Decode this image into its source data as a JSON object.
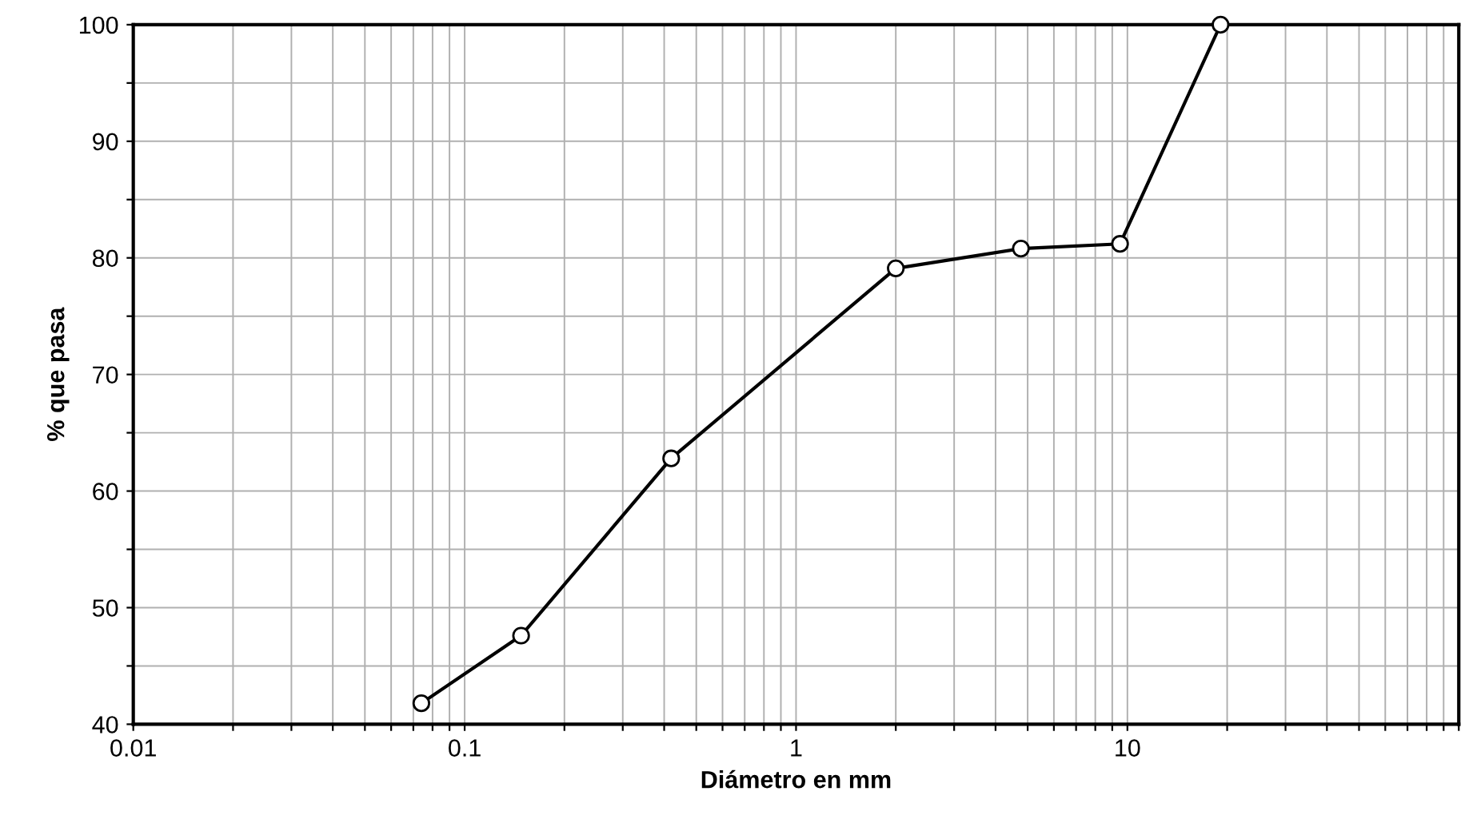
{
  "chart_data": {
    "type": "line",
    "xlabel": "Diámetro en mm",
    "ylabel": "% que pasa",
    "log": "x",
    "grid": true,
    "marker": "circle",
    "line_style": "solid",
    "x": [
      0.074,
      0.148,
      0.42,
      2.0,
      4.77,
      9.5,
      19.1
    ],
    "series": [
      {
        "color": "#000000",
        "values": [
          41.8,
          47.6,
          62.8,
          79.1,
          80.8,
          81.2,
          100
        ]
      }
    ],
    "xlim": [
      0.01,
      100
    ],
    "ylim": [
      40,
      100
    ],
    "xticks": [
      0.01,
      {
        "value": 0.02,
        "label": null
      },
      {
        "value": 0.03,
        "label": null
      },
      {
        "value": 0.04,
        "label": null
      },
      {
        "value": 0.05,
        "label": null
      },
      {
        "value": 0.06,
        "label": null
      },
      {
        "value": 0.07,
        "label": null
      },
      {
        "value": 0.08,
        "label": null
      },
      {
        "value": 0.09,
        "label": null
      },
      0.1,
      {
        "value": 0.2,
        "label": null
      },
      {
        "value": 0.3,
        "label": null
      },
      {
        "value": 0.4,
        "label": null
      },
      {
        "value": 0.5,
        "label": null
      },
      {
        "value": 0.6,
        "label": null
      },
      {
        "value": 0.7,
        "label": null
      },
      {
        "value": 0.8,
        "label": null
      },
      {
        "value": 0.9,
        "label": null
      },
      1,
      {
        "value": 2,
        "label": null
      },
      {
        "value": 3,
        "label": null
      },
      {
        "value": 4,
        "label": null
      },
      {
        "value": 5,
        "label": null
      },
      {
        "value": 6,
        "label": null
      },
      {
        "value": 7,
        "label": null
      },
      {
        "value": 8,
        "label": null
      },
      {
        "value": 9,
        "label": null
      },
      10,
      {
        "value": 20,
        "label": null
      },
      {
        "value": 30,
        "label": null
      },
      {
        "value": 40,
        "label": null
      },
      {
        "value": 50,
        "label": null
      },
      {
        "value": 60,
        "label": null
      },
      {
        "value": 70,
        "label": null
      },
      {
        "value": 80,
        "label": null
      },
      {
        "value": 90,
        "label": null
      },
      {
        "value": 100,
        "label": null
      }
    ],
    "yticks": [
      40,
      {
        "value": 45,
        "label": null
      },
      50,
      {
        "value": 55,
        "label": null
      },
      60,
      {
        "value": 65,
        "label": null
      },
      70,
      {
        "value": 75,
        "label": null
      },
      80,
      {
        "value": 85,
        "label": null
      },
      90,
      {
        "value": 95,
        "label": null
      },
      100
    ]
  }
}
